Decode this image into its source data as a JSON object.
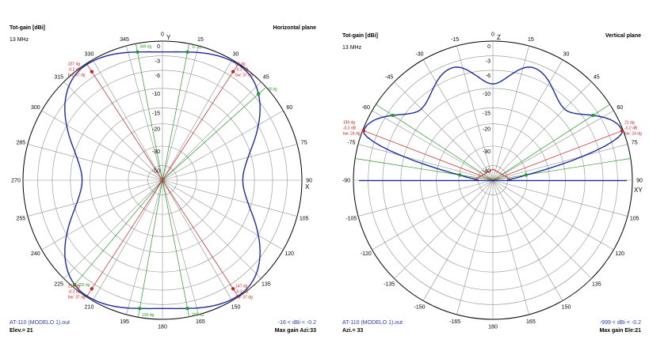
{
  "colors": {
    "pattern": "#1a2ba0",
    "ring": "#909090",
    "red": "#c42222",
    "green": "#2a9a2a",
    "footer_blue": "#2b3fa8"
  },
  "chart_data": [
    {
      "type": "polar",
      "ylabel": "Tot-gain [dBi]",
      "title": "Horizontal plane",
      "subtitle": "13 MHz",
      "rings": [
        "0",
        "-3",
        "-6",
        "-10",
        "-15",
        "-20",
        "-30",
        "-50"
      ],
      "angle_labels": [
        "0",
        "15",
        "30",
        "45",
        "60",
        "75",
        "90",
        "105",
        "120",
        "135",
        "150",
        "165",
        "180",
        "195",
        "210",
        "225",
        "240",
        "255",
        "270",
        "285",
        "300",
        "315",
        "330",
        "345"
      ],
      "axis_labels": [
        "Y",
        "X"
      ],
      "lobe_angles": [
        0,
        34,
        90,
        146,
        180,
        214,
        270,
        326
      ],
      "lobe_gains": [
        -2.2,
        -0.2,
        -13,
        -0.2,
        -2.2,
        -0.2,
        -13,
        -0.2
      ],
      "red_annotations": [
        {
          "angle": 33,
          "lines": [
            "33 dg",
            "-0.2 dB",
            "bw: 37 dg"
          ]
        },
        {
          "angle": 327,
          "lines": [
            "327 dg",
            "-0.2 dB",
            "bw: 37 dg"
          ]
        },
        {
          "angle": 147,
          "lines": [
            "147 dg",
            "-0.2 dB",
            "bw: 37 dg"
          ]
        },
        {
          "angle": 213,
          "lines": [
            "213 dg",
            "-0.2 dB",
            "bw: 37 dg"
          ]
        }
      ],
      "green_annotations": [
        {
          "angle": 349,
          "label": "349 dg"
        },
        {
          "angle": 11,
          "label": "11 dg"
        },
        {
          "angle": 48,
          "label": "48 dg"
        },
        {
          "angle": 220,
          "label": "220 dg"
        },
        {
          "angle": 169,
          "label": "169 dg"
        },
        {
          "angle": 190,
          "label": "190 dg"
        }
      ],
      "footer_left": "AT-110 (MODELO 1).out",
      "footer_left2": "Elev.= 21",
      "footer_right": "-16 < dBi < -0.2",
      "footer_right2": "Max gain Azi:33"
    },
    {
      "type": "polar",
      "ylabel": "Tot-gain [dBi]",
      "title": "Vertical plane",
      "subtitle": "13 MHz",
      "rings": [
        "0",
        "-3",
        "-6",
        "-10",
        "-15",
        "-20",
        "-30",
        "-40"
      ],
      "angle_labels": [
        "0",
        "15",
        "30",
        "45",
        "60",
        "75",
        "90",
        "105",
        "120",
        "135",
        "150",
        "165",
        "180",
        "-165",
        "-150",
        "-135",
        "-120",
        "-105",
        "-90",
        "-75",
        "-60",
        "-45",
        "-30",
        "-15"
      ],
      "axis_labels": [
        "Z",
        "XY"
      ],
      "lobe_elevations": [
        0,
        21,
        45,
        70,
        90,
        110,
        135,
        159,
        180
      ],
      "lobe_gains": [
        -50,
        -0.2,
        -8,
        -4,
        -9,
        -4,
        -8,
        -0.2,
        -50
      ],
      "red_annotations": [
        {
          "angle": 21,
          "lines": [
            "21 dg",
            "-0.2 dB",
            "bw: 24 dg"
          ]
        },
        {
          "angle": 159,
          "lines": [
            "159 dg",
            "-0.2 dB",
            "bw: 24 dg"
          ]
        }
      ],
      "footer_left": "AT-110 (MODELO 1).out",
      "footer_left2": "Azi.= 33",
      "footer_right": "-999 < dBi < -0.2",
      "footer_right2": "Max gain Ele:21"
    }
  ]
}
